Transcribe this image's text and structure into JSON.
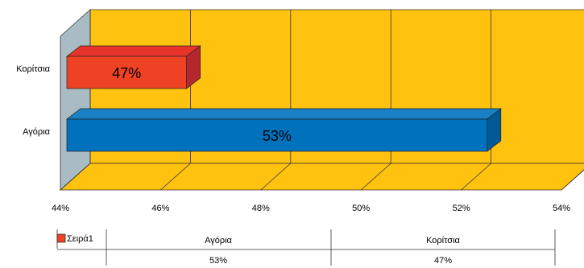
{
  "chart_data": {
    "type": "bar",
    "orientation": "horizontal",
    "three_d": true,
    "categories": [
      "Αγόρια",
      "Κορίτσια"
    ],
    "series": [
      {
        "name": "Σειρά1",
        "values": [
          0.53,
          0.47
        ]
      }
    ],
    "data_labels": [
      "53%",
      "47%"
    ],
    "x_ticks": [
      "44%",
      "46%",
      "48%",
      "50%",
      "52%",
      "54%"
    ],
    "xlim": [
      0.44,
      0.54
    ],
    "grid": true,
    "legend": "bottom-left",
    "data_table": {
      "series_name": "Σειρά1",
      "headers": [
        "Αγόρια",
        "Κορίτσια"
      ],
      "values": [
        "53%",
        "47%"
      ]
    },
    "colors": {
      "plot_back": "#FFC20E",
      "side_wall": "#A9BCC4",
      "gridline": "#333333",
      "bar_boys_front": "#0071BC",
      "bar_boys_top": "#1A81C6",
      "bar_boys_side": "#005A96",
      "bar_girls_front": "#EF4123",
      "bar_girls_top": "#E8332A",
      "bar_girls_side": "#B5272E",
      "legend_swatch": "#EF4123"
    }
  }
}
